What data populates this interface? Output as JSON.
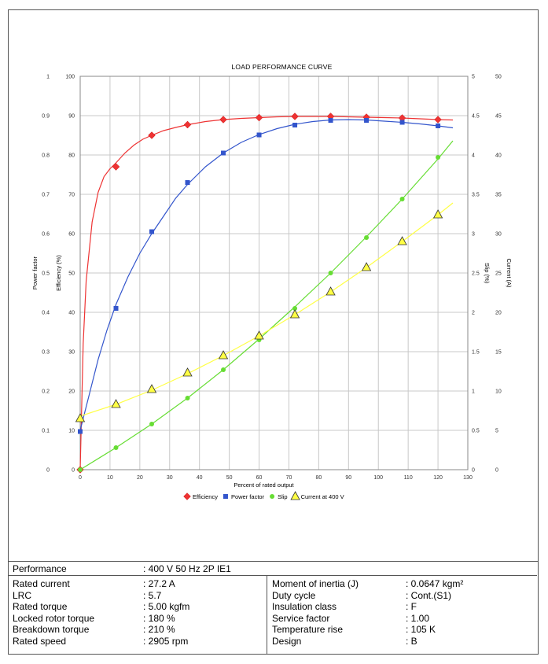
{
  "chart_data": {
    "type": "line",
    "title": "LOAD PERFORMANCE CURVE",
    "xlabel": "Percent of rated output",
    "xlim": [
      0,
      130
    ],
    "x_ticks": [
      "0",
      "10",
      "20",
      "30",
      "40",
      "50",
      "60",
      "70",
      "80",
      "90",
      "100",
      "110",
      "120",
      "130"
    ],
    "axes": [
      {
        "id": "pf",
        "label": "Power factor",
        "side": "left-outer",
        "lim": [
          0,
          1
        ],
        "ticks": [
          "0",
          "0.1",
          "0.2",
          "0.3",
          "0.4",
          "0.5",
          "0.6",
          "0.7",
          "0.8",
          "0.9",
          "1"
        ]
      },
      {
        "id": "eff",
        "label": "Efficiency (%)",
        "side": "left-inner",
        "lim": [
          0,
          100
        ],
        "ticks": [
          "0",
          "10",
          "20",
          "30",
          "40",
          "50",
          "60",
          "70",
          "80",
          "90",
          "100"
        ]
      },
      {
        "id": "slip",
        "label": "Slip (%)",
        "side": "right-inner",
        "lim": [
          0,
          5
        ],
        "ticks": [
          "0",
          "0.5",
          "1",
          "1.5",
          "2",
          "2.5",
          "3",
          "3.5",
          "4",
          "4.5",
          "5"
        ]
      },
      {
        "id": "cur",
        "label": "Current (A)",
        "side": "right-outer",
        "lim": [
          0,
          50
        ],
        "ticks": [
          "0",
          "5",
          "10",
          "15",
          "20",
          "25",
          "30",
          "35",
          "40",
          "45",
          "50"
        ]
      }
    ],
    "grid": true,
    "legend_position": "bottom",
    "series": [
      {
        "name": "Efficiency",
        "axis": "eff",
        "color": "#ee3333",
        "marker": "diamond",
        "x": [
          0,
          12,
          24,
          36,
          48,
          60,
          72,
          84,
          96,
          108,
          120
        ],
        "values": [
          0,
          77,
          85,
          87.7,
          89,
          89.5,
          89.8,
          89.8,
          89.6,
          89.4,
          89
        ],
        "curve_x": [
          0,
          1,
          2,
          4,
          6,
          8,
          10,
          12,
          15,
          18,
          21,
          24,
          28,
          32,
          36,
          42,
          48,
          54,
          60,
          66,
          72,
          78,
          84,
          90,
          96,
          102,
          108,
          114,
          120,
          125
        ],
        "curve_y": [
          0,
          32,
          48,
          63,
          70.5,
          74.5,
          76.5,
          78,
          80.5,
          82.5,
          84,
          85,
          86.2,
          87,
          87.7,
          88.5,
          89,
          89.3,
          89.5,
          89.7,
          89.8,
          89.8,
          89.8,
          89.7,
          89.6,
          89.5,
          89.4,
          89.2,
          89,
          88.9
        ]
      },
      {
        "name": "Power factor",
        "axis": "pf",
        "color": "#3355cc",
        "marker": "square",
        "x": [
          0,
          12,
          24,
          36,
          48,
          60,
          72,
          84,
          96,
          108,
          120
        ],
        "values": [
          0.097,
          0.41,
          0.605,
          0.73,
          0.805,
          0.851,
          0.876,
          0.888,
          0.888,
          0.883,
          0.874
        ],
        "curve_x": [
          0,
          3,
          6,
          9,
          12,
          16,
          20,
          24,
          28,
          32,
          36,
          42,
          48,
          54,
          60,
          66,
          72,
          78,
          84,
          90,
          96,
          102,
          108,
          114,
          120,
          125
        ],
        "curve_y": [
          0.1,
          0.19,
          0.28,
          0.355,
          0.42,
          0.49,
          0.55,
          0.6,
          0.645,
          0.69,
          0.725,
          0.77,
          0.805,
          0.832,
          0.852,
          0.867,
          0.878,
          0.885,
          0.889,
          0.89,
          0.889,
          0.886,
          0.883,
          0.879,
          0.874,
          0.869
        ]
      },
      {
        "name": "Slip",
        "axis": "slip",
        "color": "#66dd33",
        "marker": "circle",
        "x": [
          0,
          12,
          24,
          36,
          48,
          60,
          72,
          84,
          96,
          108,
          120
        ],
        "values": [
          0,
          0.28,
          0.58,
          0.91,
          1.27,
          1.65,
          2.05,
          2.5,
          2.95,
          3.44,
          3.97
        ],
        "curve_x": [
          0,
          12,
          24,
          36,
          48,
          60,
          72,
          84,
          96,
          108,
          120,
          125
        ],
        "curve_y": [
          0,
          0.28,
          0.58,
          0.91,
          1.27,
          1.66,
          2.07,
          2.5,
          2.96,
          3.44,
          3.95,
          4.18
        ]
      },
      {
        "name": "Current at 400 V",
        "axis": "cur",
        "color": "#ffff44",
        "marker": "triangle",
        "x": [
          0,
          12,
          24,
          36,
          48,
          60,
          72,
          84,
          96,
          108,
          120
        ],
        "values": [
          6.5,
          8.3,
          10.2,
          12.3,
          14.5,
          17,
          19.7,
          22.6,
          25.7,
          29,
          32.4
        ],
        "curve_x": [
          0,
          12,
          24,
          36,
          48,
          60,
          72,
          84,
          96,
          108,
          120,
          125
        ],
        "curve_y": [
          6.8,
          8.3,
          10.1,
          12.2,
          14.5,
          17,
          19.7,
          22.6,
          25.7,
          29,
          32.4,
          33.9
        ]
      }
    ]
  },
  "spec_table": {
    "performance_label": "Performance",
    "performance_value": ": 400 V 50 Hz 2P IE1",
    "left_rows": [
      {
        "label": "Rated current",
        "value": ": 27.2 A"
      },
      {
        "label": "LRC",
        "value": ": 5.7"
      },
      {
        "label": "Rated torque",
        "value": ": 5.00 kgfm"
      },
      {
        "label": "Locked rotor torque",
        "value": ": 180 %"
      },
      {
        "label": "Breakdown torque",
        "value": ": 210 %"
      },
      {
        "label": "Rated speed",
        "value": ": 2905 rpm"
      }
    ],
    "right_rows": [
      {
        "label": "Moment of inertia (J)",
        "value": ": 0.0647 kgm²"
      },
      {
        "label": "Duty cycle",
        "value": ": Cont.(S1)"
      },
      {
        "label": "Insulation class",
        "value": ": F"
      },
      {
        "label": "Service factor",
        "value": ": 1.00"
      },
      {
        "label": "Temperature rise",
        "value": ": 105 K"
      },
      {
        "label": "Design",
        "value": ": B"
      }
    ]
  }
}
